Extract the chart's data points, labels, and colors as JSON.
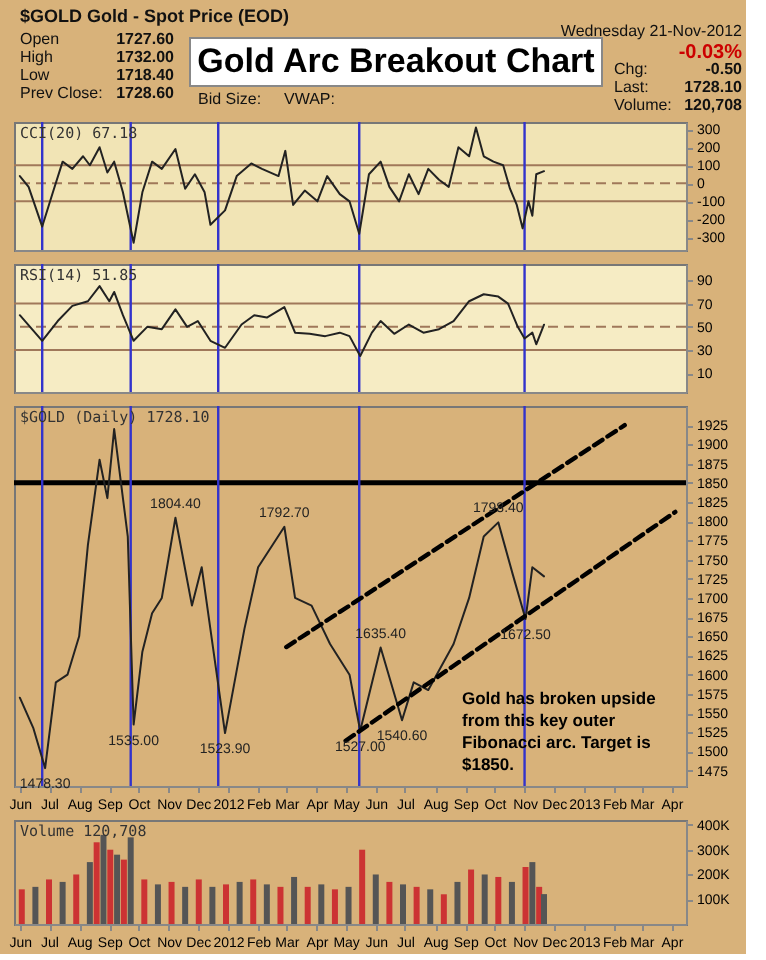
{
  "chart_data": [
    {
      "type": "other",
      "title": "Gold Arc Breakout Chart",
      "annotations": [
        "$GOLD Gold - Spot Price (EOD)",
        "Open",
        "1727.60",
        "High",
        "1732.00",
        "Low",
        "1718.40",
        "Prev Close:",
        "1728.60",
        "Bid Size:",
        "VWAP:",
        "Wednesday 21-Nov-2012",
        "-0.03%",
        "Chg:",
        "-0.50",
        "Last:",
        "1728.10",
        "Volume:",
        "120,708"
      ]
    },
    {
      "type": "line",
      "title": "CCI(20) 67.18",
      "xlim": [
        "2011-05-26",
        "2013-04-16"
      ],
      "ylim": [
        -370,
        340
      ],
      "yticks": [
        -300,
        -200,
        -100,
        0,
        100,
        200,
        300
      ],
      "tick_labels": "y",
      "grid": false,
      "x": [
        "2011-06-01",
        "2011-06-10",
        "2011-06-24",
        "2011-07-05",
        "2011-07-15",
        "2011-07-25",
        "2011-08-05",
        "2011-08-12",
        "2011-08-22",
        "2011-08-30",
        "2011-09-06",
        "2011-09-15",
        "2011-09-26",
        "2011-10-05",
        "2011-10-15",
        "2011-10-25",
        "2011-11-08",
        "2011-11-18",
        "2011-11-28",
        "2011-12-08",
        "2011-12-14",
        "2011-12-29",
        "2012-01-10",
        "2012-01-25",
        "2012-02-05",
        "2012-02-22",
        "2012-02-29",
        "2012-03-08",
        "2012-03-20",
        "2012-04-02",
        "2012-04-12",
        "2012-04-25",
        "2012-05-05",
        "2012-05-15",
        "2012-05-25",
        "2012-06-06",
        "2012-06-15",
        "2012-06-25",
        "2012-07-05",
        "2012-07-15",
        "2012-07-25",
        "2012-08-05",
        "2012-08-15",
        "2012-08-25",
        "2012-09-05",
        "2012-09-12",
        "2012-09-20",
        "2012-09-30",
        "2012-10-10",
        "2012-10-17",
        "2012-10-24",
        "2012-10-30",
        "2012-11-05",
        "2012-11-09",
        "2012-11-13",
        "2012-11-21"
      ],
      "series": [
        {
          "color": "#222222",
          "values": [
            40,
            -20,
            -240,
            -50,
            120,
            80,
            150,
            100,
            200,
            60,
            120,
            -50,
            -330,
            -50,
            120,
            80,
            190,
            -30,
            50,
            -50,
            -230,
            -150,
            40,
            110,
            80,
            40,
            180,
            -120,
            -40,
            -100,
            40,
            -60,
            -100,
            -280,
            50,
            120,
            -20,
            -100,
            50,
            -60,
            80,
            20,
            -20,
            200,
            150,
            310,
            150,
            120,
            100,
            -30,
            -120,
            -250,
            -100,
            -180,
            50,
            67.18
          ]
        }
      ],
      "ref_lines": [
        {
          "axis": "y",
          "value": 100,
          "color": "#a0785a"
        },
        {
          "axis": "y",
          "value": 0,
          "color": "#a0785a",
          "line_style": "dashed"
        },
        {
          "axis": "y",
          "value": -100,
          "color": "#a0785a"
        },
        {
          "axis": "x",
          "value": "2011-06-24",
          "color": "#3333cc"
        },
        {
          "axis": "x",
          "value": "2011-09-23",
          "color": "#3333cc"
        },
        {
          "axis": "x",
          "value": "2011-12-22",
          "color": "#3333cc"
        },
        {
          "axis": "x",
          "value": "2012-05-15",
          "color": "#3333cc"
        },
        {
          "axis": "x",
          "value": "2012-11-01",
          "color": "#3333cc"
        }
      ]
    },
    {
      "type": "line",
      "title": "RSI(14) 51.85",
      "xlim": [
        "2011-05-26",
        "2013-04-16"
      ],
      "ylim": [
        -6,
        104
      ],
      "yticks": [
        10,
        30,
        50,
        70,
        90
      ],
      "tick_labels": "y",
      "grid": false,
      "x": [
        "2011-06-01",
        "2011-06-24",
        "2011-07-10",
        "2011-07-25",
        "2011-08-10",
        "2011-08-22",
        "2011-09-01",
        "2011-09-06",
        "2011-09-15",
        "2011-09-26",
        "2011-10-10",
        "2011-10-25",
        "2011-11-08",
        "2011-11-20",
        "2011-12-01",
        "2011-12-14",
        "2011-12-29",
        "2012-01-15",
        "2012-01-28",
        "2012-02-10",
        "2012-02-28",
        "2012-03-10",
        "2012-03-25",
        "2012-04-10",
        "2012-04-25",
        "2012-05-05",
        "2012-05-16",
        "2012-05-28",
        "2012-06-06",
        "2012-06-20",
        "2012-07-05",
        "2012-07-20",
        "2012-08-05",
        "2012-08-20",
        "2012-09-05",
        "2012-09-20",
        "2012-10-05",
        "2012-10-15",
        "2012-10-25",
        "2012-11-01",
        "2012-11-09",
        "2012-11-13",
        "2012-11-21"
      ],
      "series": [
        {
          "color": "#222222",
          "values": [
            60,
            38,
            55,
            68,
            72,
            85,
            72,
            80,
            60,
            38,
            50,
            48,
            65,
            50,
            55,
            38,
            32,
            52,
            60,
            58,
            67,
            45,
            44,
            42,
            45,
            42,
            25,
            45,
            55,
            44,
            52,
            45,
            48,
            55,
            72,
            78,
            76,
            70,
            50,
            40,
            45,
            35,
            51.85
          ]
        }
      ],
      "ref_lines": [
        {
          "axis": "y",
          "value": 70,
          "color": "#a0785a"
        },
        {
          "axis": "y",
          "value": 50,
          "color": "#a0785a",
          "line_style": "dashed"
        },
        {
          "axis": "y",
          "value": 30,
          "color": "#a0785a"
        },
        {
          "axis": "x",
          "value": "2011-06-24",
          "color": "#3333cc"
        },
        {
          "axis": "x",
          "value": "2011-09-23",
          "color": "#3333cc"
        },
        {
          "axis": "x",
          "value": "2011-12-22",
          "color": "#3333cc"
        },
        {
          "axis": "x",
          "value": "2012-05-15",
          "color": "#3333cc"
        },
        {
          "axis": "x",
          "value": "2012-11-01",
          "color": "#3333cc"
        }
      ]
    },
    {
      "type": "line",
      "title": "$GOLD (Daily) 1728.10",
      "xlim": [
        "2011-05-26",
        "2013-04-16"
      ],
      "ylim": [
        1455,
        1950
      ],
      "yticks": [
        1475,
        1500,
        1525,
        1550,
        1575,
        1600,
        1625,
        1650,
        1675,
        1700,
        1725,
        1750,
        1775,
        1800,
        1825,
        1850,
        1875,
        1900,
        1925
      ],
      "xticks": [
        {
          "value": "2011-06-01",
          "label": "Jun"
        },
        {
          "value": "2011-07-01",
          "label": "Jul"
        },
        {
          "value": "2011-08-01",
          "label": "Aug"
        },
        {
          "value": "2011-09-01",
          "label": "Sep"
        },
        {
          "value": "2011-10-01",
          "label": "Oct"
        },
        {
          "value": "2011-11-01",
          "label": "Nov"
        },
        {
          "value": "2011-12-01",
          "label": "Dec"
        },
        {
          "value": "2012-01-01",
          "label": "2012"
        },
        {
          "value": "2012-02-01",
          "label": "Feb"
        },
        {
          "value": "2012-03-01",
          "label": "Mar"
        },
        {
          "value": "2012-04-01",
          "label": "Apr"
        },
        {
          "value": "2012-05-01",
          "label": "May"
        },
        {
          "value": "2012-06-01",
          "label": "Jun"
        },
        {
          "value": "2012-07-01",
          "label": "Jul"
        },
        {
          "value": "2012-08-01",
          "label": "Aug"
        },
        {
          "value": "2012-09-01",
          "label": "Sep"
        },
        {
          "value": "2012-10-01",
          "label": "Oct"
        },
        {
          "value": "2012-11-01",
          "label": "Nov"
        },
        {
          "value": "2012-12-01",
          "label": "Dec"
        },
        {
          "value": "2013-01-01",
          "label": "2013"
        },
        {
          "value": "2013-02-01",
          "label": "Feb"
        },
        {
          "value": "2013-03-01",
          "label": "Mar"
        },
        {
          "value": "2013-04-01",
          "label": "Apr"
        }
      ],
      "grid": false,
      "series": [
        {
          "color": "#222222",
          "x": [
            "2011-06-01",
            "2011-06-15",
            "2011-06-27",
            "2011-07-08",
            "2011-07-20",
            "2011-08-01",
            "2011-08-10",
            "2011-08-22",
            "2011-08-30",
            "2011-09-06",
            "2011-09-20",
            "2011-09-26",
            "2011-10-05",
            "2011-10-15",
            "2011-10-25",
            "2011-11-08",
            "2011-11-25",
            "2011-12-05",
            "2011-12-29",
            "2012-01-18",
            "2012-02-01",
            "2012-02-28",
            "2012-03-10",
            "2012-03-27",
            "2012-04-15",
            "2012-05-05",
            "2012-05-16",
            "2012-06-06",
            "2012-06-28",
            "2012-07-10",
            "2012-07-25",
            "2012-08-20",
            "2012-09-05",
            "2012-09-20",
            "2012-10-05",
            "2012-10-20",
            "2012-11-02",
            "2012-11-09",
            "2012-11-21"
          ],
          "values": [
            1570,
            1530,
            1478.3,
            1590,
            1600,
            1650,
            1769,
            1880,
            1830,
            1920,
            1780,
            1535,
            1630,
            1680,
            1700,
            1804.4,
            1690,
            1740,
            1523.9,
            1660,
            1740,
            1792.7,
            1700,
            1690,
            1640,
            1600,
            1527,
            1635.4,
            1540.6,
            1590,
            1580,
            1640,
            1700,
            1780,
            1798.4,
            1730,
            1672.5,
            1740,
            1728.1
          ]
        },
        {
          "type": "line",
          "color": "#000000",
          "line_style": "dashed",
          "x": [
            "2012-03-01",
            "2013-02-12"
          ],
          "values": [
            1636,
            1925
          ]
        },
        {
          "type": "line",
          "color": "#000000",
          "line_style": "dashed",
          "x": [
            "2012-05-01",
            "2013-04-05"
          ],
          "values": [
            1514,
            1812
          ]
        }
      ],
      "ref_lines": [
        {
          "axis": "y",
          "value": 1850,
          "color": "#000000"
        },
        {
          "axis": "x",
          "value": "2011-06-24",
          "color": "#3333cc"
        },
        {
          "axis": "x",
          "value": "2011-09-23",
          "color": "#3333cc"
        },
        {
          "axis": "x",
          "value": "2011-12-22",
          "color": "#3333cc"
        },
        {
          "axis": "x",
          "value": "2012-05-15",
          "color": "#3333cc"
        },
        {
          "axis": "x",
          "value": "2012-11-01",
          "color": "#3333cc"
        }
      ],
      "annotations": [
        {
          "text": "1478.30",
          "x": "2011-06-27",
          "y": 1478.3
        },
        {
          "text": "1535.00",
          "x": "2011-09-26",
          "y": 1535
        },
        {
          "text": "1523.90",
          "x": "2011-12-29",
          "y": 1523.9
        },
        {
          "text": "1804.40",
          "x": "2011-11-08",
          "y": 1804.4
        },
        {
          "text": "1792.70",
          "x": "2012-02-28",
          "y": 1792.7
        },
        {
          "text": "1527.00",
          "x": "2012-05-16",
          "y": 1527
        },
        {
          "text": "1635.40",
          "x": "2012-06-06",
          "y": 1635.4
        },
        {
          "text": "1540.60",
          "x": "2012-06-28",
          "y": 1540.6
        },
        {
          "text": "1798.40",
          "x": "2012-10-05",
          "y": 1798.4
        },
        {
          "text": "1672.50",
          "x": "2012-11-02",
          "y": 1672.5
        },
        "Gold has broken upside from this key outer Fibonacci arc. Target is $1850."
      ]
    },
    {
      "type": "bar",
      "title": "Volume 120,708",
      "xlim": [
        "2011-05-26",
        "2013-04-16"
      ],
      "ylim": [
        0,
        420000
      ],
      "yticks": [
        {
          "value": 100000,
          "label": "100K"
        },
        {
          "value": 200000,
          "label": "200K"
        },
        {
          "value": 300000,
          "label": "300K"
        },
        {
          "value": 400000,
          "label": "400K"
        }
      ],
      "xticks": [
        {
          "value": "2011-06-01",
          "label": "Jun"
        },
        {
          "value": "2011-07-01",
          "label": "Jul"
        },
        {
          "value": "2011-08-01",
          "label": "Aug"
        },
        {
          "value": "2011-09-01",
          "label": "Sep"
        },
        {
          "value": "2011-10-01",
          "label": "Oct"
        },
        {
          "value": "2011-11-01",
          "label": "Nov"
        },
        {
          "value": "2011-12-01",
          "label": "Dec"
        },
        {
          "value": "2012-01-01",
          "label": "2012"
        },
        {
          "value": "2012-02-01",
          "label": "Feb"
        },
        {
          "value": "2012-03-01",
          "label": "Mar"
        },
        {
          "value": "2012-04-01",
          "label": "Apr"
        },
        {
          "value": "2012-05-01",
          "label": "May"
        },
        {
          "value": "2012-06-01",
          "label": "Jun"
        },
        {
          "value": "2012-07-01",
          "label": "Jul"
        },
        {
          "value": "2012-08-01",
          "label": "Aug"
        },
        {
          "value": "2012-09-01",
          "label": "Sep"
        },
        {
          "value": "2012-10-01",
          "label": "Oct"
        },
        {
          "value": "2012-11-01",
          "label": "Nov"
        },
        {
          "value": "2012-12-01",
          "label": "Dec"
        },
        {
          "value": "2013-01-01",
          "label": "2013"
        },
        {
          "value": "2013-02-01",
          "label": "Feb"
        },
        {
          "value": "2013-03-01",
          "label": "Mar"
        },
        {
          "value": "2013-04-01",
          "label": "Apr"
        }
      ],
      "grid": false,
      "x": [
        "2011-06-03",
        "2011-06-17",
        "2011-07-01",
        "2011-07-15",
        "2011-07-29",
        "2011-08-12",
        "2011-08-19",
        "2011-08-26",
        "2011-09-02",
        "2011-09-09",
        "2011-09-16",
        "2011-09-23",
        "2011-10-07",
        "2011-10-21",
        "2011-11-04",
        "2011-11-18",
        "2011-12-02",
        "2011-12-16",
        "2011-12-30",
        "2012-01-13",
        "2012-01-27",
        "2012-02-10",
        "2012-02-24",
        "2012-03-09",
        "2012-03-23",
        "2012-04-06",
        "2012-04-20",
        "2012-05-04",
        "2012-05-18",
        "2012-06-01",
        "2012-06-15",
        "2012-06-29",
        "2012-07-13",
        "2012-07-27",
        "2012-08-10",
        "2012-08-24",
        "2012-09-07",
        "2012-09-21",
        "2012-10-05",
        "2012-10-19",
        "2012-11-02",
        "2012-11-09",
        "2012-11-16",
        "2012-11-21"
      ],
      "series": [
        {
          "colors": [
            "#cc3333",
            "#555555",
            "#cc3333",
            "#555555",
            "#cc3333",
            "#555555",
            "#cc3333",
            "#555555",
            "#cc3333",
            "#555555",
            "#cc3333",
            "#555555",
            "#cc3333",
            "#555555",
            "#cc3333",
            "#555555",
            "#cc3333",
            "#555555",
            "#cc3333",
            "#555555",
            "#cc3333",
            "#555555",
            "#cc3333",
            "#555555",
            "#cc3333",
            "#555555",
            "#cc3333",
            "#555555",
            "#cc3333",
            "#555555",
            "#cc3333",
            "#555555",
            "#cc3333",
            "#555555",
            "#cc3333",
            "#555555",
            "#cc3333",
            "#555555",
            "#cc3333",
            "#555555",
            "#cc3333",
            "#555555",
            "#cc3333",
            "#555555"
          ],
          "values": [
            140000,
            150000,
            180000,
            170000,
            200000,
            250000,
            330000,
            360000,
            300000,
            280000,
            260000,
            350000,
            180000,
            160000,
            170000,
            150000,
            180000,
            150000,
            160000,
            170000,
            180000,
            160000,
            150000,
            190000,
            150000,
            160000,
            140000,
            150000,
            300000,
            200000,
            170000,
            160000,
            150000,
            140000,
            120000,
            170000,
            220000,
            200000,
            190000,
            170000,
            230000,
            250000,
            150000,
            120708
          ]
        }
      ]
    }
  ]
}
